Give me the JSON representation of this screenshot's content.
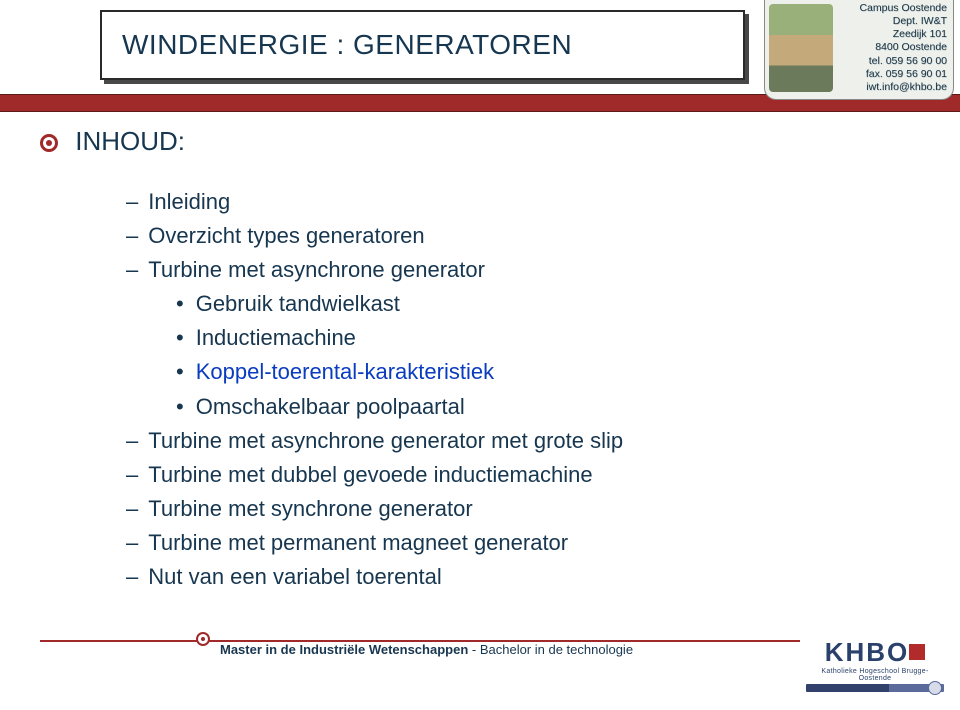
{
  "title": "WINDENERGIE : GENERATOREN",
  "campus": {
    "line1": "Campus Oostende",
    "line2": "Dept. IW&T",
    "line3": "Zeedijk 101",
    "line4": "8400 Oostende",
    "line5": "tel. 059 56 90 00",
    "line6": "fax. 059 56 90 01",
    "line7": "iwt.info@khbo.be"
  },
  "heading": "INHOUD:",
  "items_level1": [
    "Inleiding",
    "Overzicht types generatoren",
    "Turbine met asynchrone generator"
  ],
  "items_level2": [
    {
      "text": "Gebruik tandwielkast",
      "highlight": false
    },
    {
      "text": "Inductiemachine",
      "highlight": false
    },
    {
      "text": "Koppel-toerental-karakteristiek",
      "highlight": true
    },
    {
      "text": "Omschakelbaar poolpaartal",
      "highlight": false
    }
  ],
  "items_level1_after": [
    "Turbine met asynchrone generator met grote slip",
    "Turbine met dubbel gevoede inductiemachine",
    "Turbine met synchrone generator",
    "Turbine met permanent magneet generator",
    "Nut van een variabel toerental"
  ],
  "footer": {
    "bold": "Master in de Industriële Wetenschappen",
    "sep": "  -  ",
    "rest": "Bachelor in de technologie"
  },
  "logo": {
    "big": "KHBO",
    "sub": "Katholieke Hogeschool Brugge-Oostende"
  },
  "colors": {
    "accent": "#a02a2a",
    "text": "#17364f",
    "highlight": "#0a3cc0"
  }
}
